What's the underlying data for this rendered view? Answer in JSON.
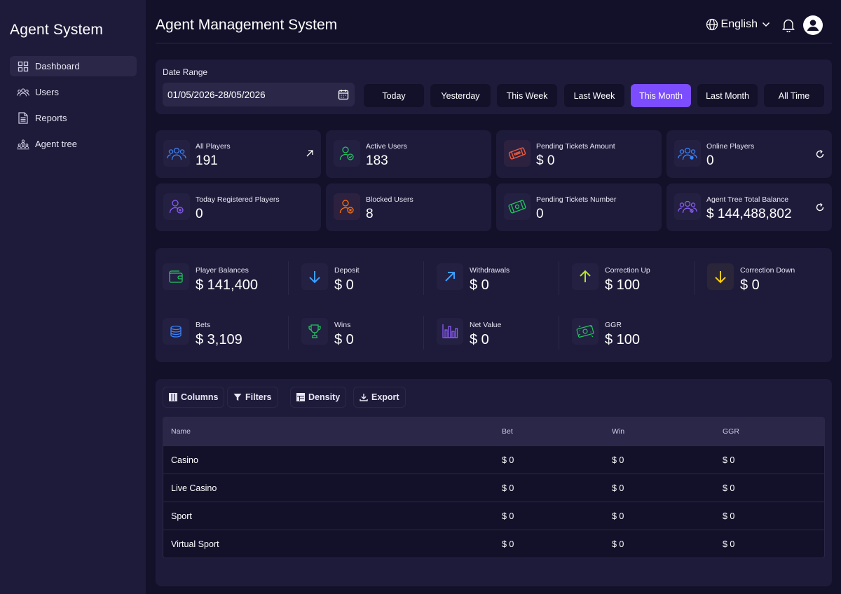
{
  "sidebar": {
    "brand": "Agent System",
    "items": [
      {
        "label": "Dashboard",
        "icon": "grid-icon",
        "active": true
      },
      {
        "label": "Users",
        "icon": "users-icon"
      },
      {
        "label": "Reports",
        "icon": "document-icon"
      },
      {
        "label": "Agent tree",
        "icon": "tree-icon"
      }
    ]
  },
  "header": {
    "title": "Agent Management System",
    "language": "English"
  },
  "date_range": {
    "label": "Date Range",
    "value": "01/05/2026-28/05/2026",
    "options": [
      "Today",
      "Yesterday",
      "This Week",
      "Last Week",
      "This Month",
      "Last Month",
      "All Time"
    ],
    "active": "This Month"
  },
  "stats": [
    {
      "label": "All Players",
      "value": "191",
      "icon": "users-icon",
      "color": "#3b82f6",
      "action": "arrow-up-right-icon"
    },
    {
      "label": "Active Users",
      "value": "183",
      "icon": "user-check-icon",
      "color": "#22c55e"
    },
    {
      "label": "Pending Tickets Amount",
      "value": "$ 0",
      "icon": "tickets-icon",
      "color": "#ef5a3c"
    },
    {
      "label": "Online Players",
      "value": "0",
      "icon": "users-online-icon",
      "color": "#3b82f6",
      "action": "refresh-icon"
    },
    {
      "label": "Today Registered Players",
      "value": "0",
      "icon": "user-add-icon",
      "color": "#8b5cf6"
    },
    {
      "label": "Blocked Users",
      "value": "8",
      "icon": "user-block-icon",
      "color": "#f97316"
    },
    {
      "label": "Pending Tickets Number",
      "value": "0",
      "icon": "ticket-icon",
      "color": "#22c55e"
    },
    {
      "label": "Agent Tree Total Balance",
      "value": "$ 144,488,802",
      "icon": "users-group-icon",
      "color": "#8b5cf6",
      "action": "refresh-icon"
    }
  ],
  "financials": [
    {
      "label": "Player Balances",
      "value": "$ 141,400",
      "icon": "wallet-icon",
      "color": "#22c55e"
    },
    {
      "label": "Deposit",
      "value": "$ 0",
      "icon": "arrow-down-icon",
      "color": "#3b9eff"
    },
    {
      "label": "Withdrawals",
      "value": "$ 0",
      "icon": "arrow-up-right-icon",
      "color": "#3b9eff"
    },
    {
      "label": "Correction Up",
      "value": "$ 100",
      "icon": "arrow-up-icon",
      "color": "#b6e02a"
    },
    {
      "label": "Correction Down",
      "value": "$ 0",
      "icon": "arrow-down-icon",
      "color": "#facc15"
    },
    {
      "label": "Bets",
      "value": "$ 3,109",
      "icon": "coins-icon",
      "color": "#3b82f6"
    },
    {
      "label": "Wins",
      "value": "$ 0",
      "icon": "trophy-icon",
      "color": "#22c55e"
    },
    {
      "label": "Net Value",
      "value": "$ 0",
      "icon": "bar-chart-icon",
      "color": "#8b5cf6"
    },
    {
      "label": "GGR",
      "value": "$ 100",
      "icon": "money-icon",
      "color": "#22c55e"
    }
  ],
  "table": {
    "toolbar": [
      "Columns",
      "Filters",
      "Density",
      "Export"
    ],
    "columns": [
      "Name",
      "Bet",
      "Win",
      "GGR"
    ],
    "rows": [
      [
        "Casino",
        "$ 0",
        "$ 0",
        "$ 0"
      ],
      [
        "Live Casino",
        "$ 0",
        "$ 0",
        "$ 0"
      ],
      [
        "Sport",
        "$ 0",
        "$ 0",
        "$ 0"
      ],
      [
        "Virtual Sport",
        "$ 0",
        "$ 0",
        "$ 0"
      ]
    ]
  }
}
